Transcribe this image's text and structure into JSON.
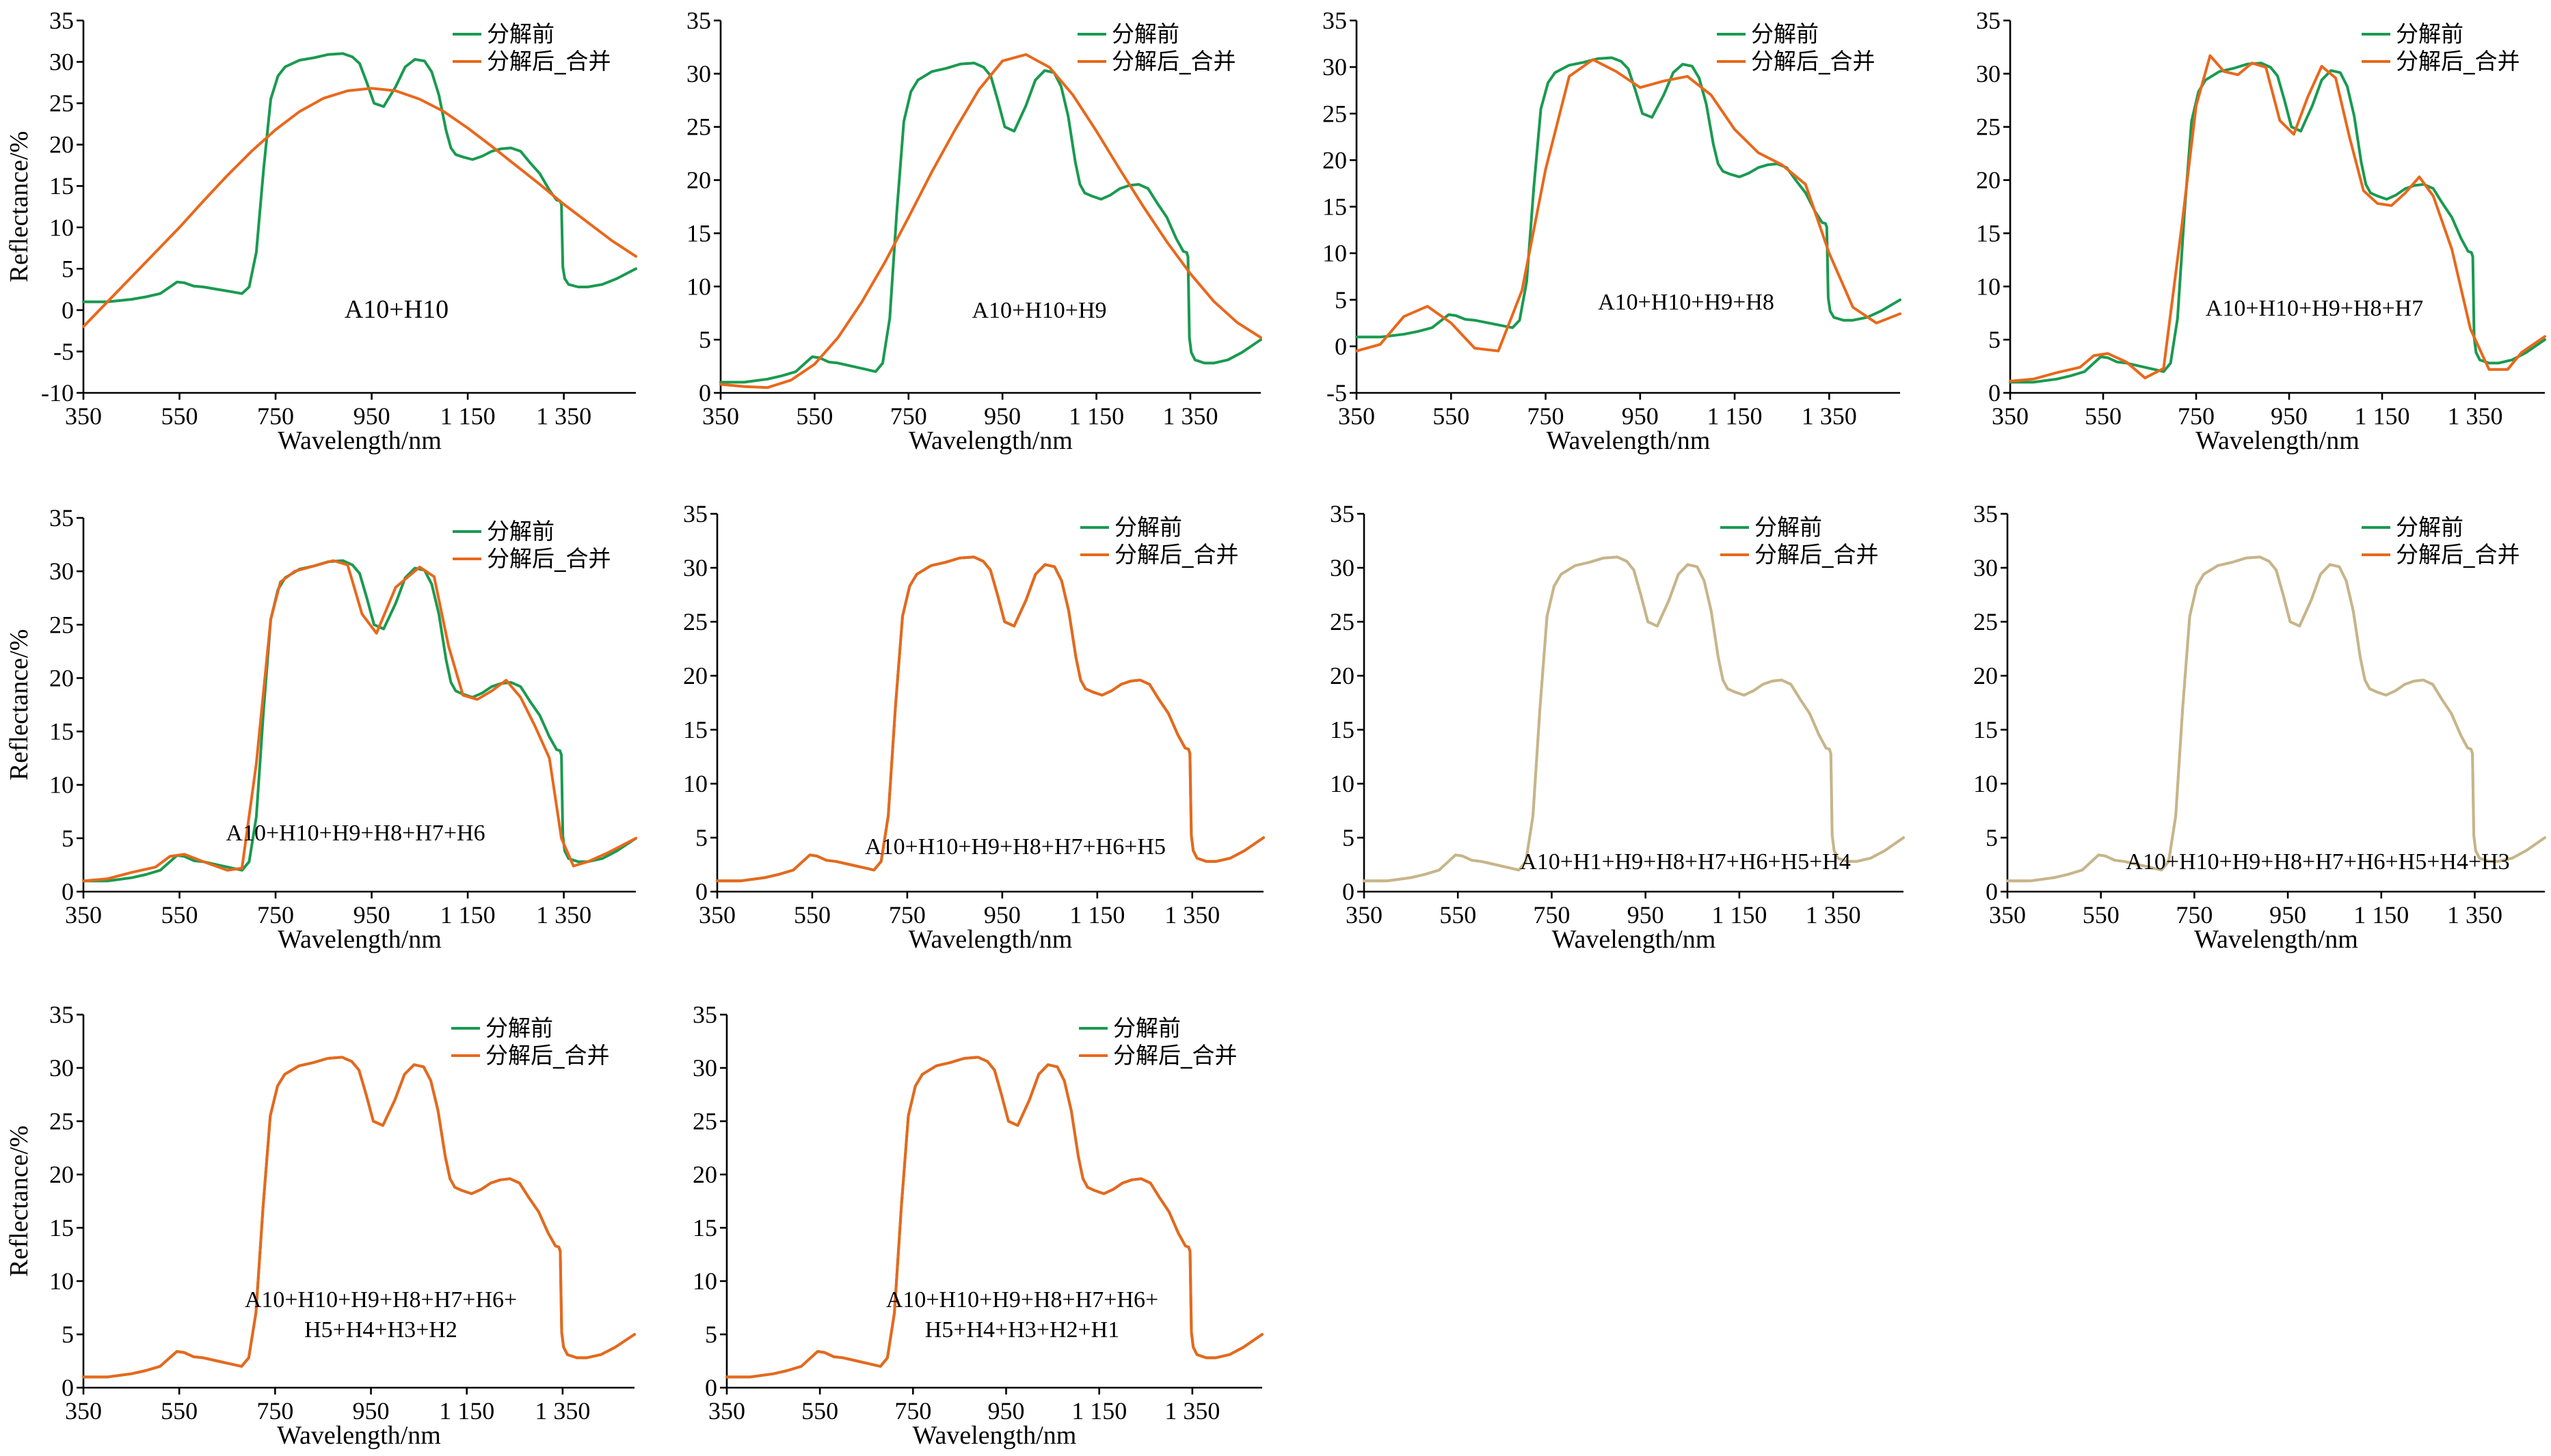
{
  "figure": {
    "colors": {
      "before": "#1a9a50",
      "after": "#e8681c",
      "merged": "#c7b58a"
    },
    "legend": [
      "分解前",
      "分解后_合并"
    ],
    "xlabel": "Wavelength/nm",
    "ylabel": "Reflectance/%"
  },
  "chart_data": [
    {
      "type": "line",
      "caption": [
        "A10+H10"
      ],
      "xlim": [
        350,
        1500
      ],
      "ylim": [
        -10,
        35
      ],
      "xticks": [
        350,
        550,
        750,
        950,
        1150,
        1350
      ],
      "xtick_labels": [
        "350",
        "550",
        "750",
        "950",
        "1 150",
        "1 350"
      ],
      "yticks": [
        -10,
        -5,
        0,
        5,
        10,
        15,
        20,
        25,
        30,
        35
      ],
      "ytick_labels": [
        "-10",
        "-5",
        "0",
        "5",
        "10",
        "15",
        "20",
        "25",
        "30",
        "35"
      ],
      "xlabel": "Wavelength/nm",
      "ylabel": "Reflectance/%",
      "legend": [
        "分解前",
        "分解后_合并"
      ],
      "series": [
        {
          "name": "分解前",
          "ref": "base"
        },
        {
          "name": "分解后_合并",
          "x": [
            350,
            400,
            450,
            500,
            550,
            600,
            650,
            700,
            750,
            800,
            850,
            900,
            950,
            1000,
            1050,
            1100,
            1150,
            1200,
            1250,
            1300,
            1350,
            1400,
            1450,
            1500
          ],
          "y": [
            -2,
            1,
            4,
            7,
            10,
            13.2,
            16.3,
            19.2,
            21.8,
            24,
            25.6,
            26.5,
            26.8,
            26.5,
            25.5,
            24,
            22,
            19.8,
            17.5,
            15.2,
            12.8,
            10.6,
            8.4,
            6.5
          ]
        }
      ]
    },
    {
      "type": "line",
      "caption": [
        "A10+H10+H9"
      ],
      "xlim": [
        350,
        1500
      ],
      "ylim": [
        0,
        35
      ],
      "xticks": [
        350,
        550,
        750,
        950,
        1150,
        1350
      ],
      "xtick_labels": [
        "350",
        "550",
        "750",
        "950",
        "1 150",
        "1 350"
      ],
      "yticks": [
        0,
        5,
        10,
        15,
        20,
        25,
        30,
        35
      ],
      "ytick_labels": [
        "0",
        "5",
        "10",
        "15",
        "20",
        "25",
        "30",
        "35"
      ],
      "xlabel": "Wavelength/nm",
      "ylabel": "",
      "legend": [
        "分解前",
        "分解后_合并"
      ],
      "series": [
        {
          "name": "分解前",
          "ref": "base"
        },
        {
          "name": "分解后_合并",
          "x": [
            350,
            400,
            450,
            500,
            550,
            600,
            650,
            700,
            750,
            800,
            850,
            900,
            950,
            1000,
            1050,
            1100,
            1150,
            1200,
            1250,
            1300,
            1350,
            1400,
            1450,
            1500
          ],
          "y": [
            0.8,
            0.6,
            0.5,
            1.2,
            2.7,
            5.2,
            8.5,
            12.3,
            16.5,
            20.8,
            24.8,
            28.5,
            31.2,
            31.8,
            30.6,
            28,
            24.6,
            21,
            17.5,
            14.2,
            11.2,
            8.6,
            6.6,
            5.2
          ]
        }
      ]
    },
    {
      "type": "line",
      "caption": [
        "A10+H10+H9+H8"
      ],
      "xlim": [
        350,
        1500
      ],
      "ylim": [
        -5,
        35
      ],
      "xticks": [
        350,
        550,
        750,
        950,
        1150,
        1350
      ],
      "xtick_labels": [
        "350",
        "550",
        "750",
        "950",
        "1 150",
        "1 350"
      ],
      "yticks": [
        -5,
        0,
        5,
        10,
        15,
        20,
        25,
        30,
        35
      ],
      "ytick_labels": [
        "-5",
        "0",
        "5",
        "10",
        "15",
        "20",
        "25",
        "30",
        "35"
      ],
      "xlabel": "Wavelength/nm",
      "ylabel": "",
      "legend": [
        "分解前",
        "分解后_合并"
      ],
      "series": [
        {
          "name": "分解前",
          "ref": "base"
        },
        {
          "name": "分解后_合并",
          "x": [
            350,
            400,
            450,
            500,
            550,
            600,
            650,
            700,
            750,
            800,
            850,
            900,
            950,
            1000,
            1050,
            1100,
            1150,
            1200,
            1250,
            1300,
            1350,
            1400,
            1450,
            1500
          ],
          "y": [
            -0.5,
            0.2,
            3.2,
            4.3,
            2.5,
            -0.2,
            -0.5,
            6,
            19,
            29,
            30.8,
            29.5,
            27.8,
            28.5,
            29,
            27,
            23.3,
            20.8,
            19.5,
            17.4,
            10,
            4.2,
            2.5,
            3.5
          ]
        }
      ]
    },
    {
      "type": "line",
      "caption": [
        "A10+H10+H9+H8+H7"
      ],
      "xlim": [
        350,
        1500
      ],
      "ylim": [
        0,
        35
      ],
      "xticks": [
        350,
        550,
        750,
        950,
        1150,
        1350
      ],
      "xtick_labels": [
        "350",
        "550",
        "750",
        "950",
        "1 150",
        "1 350"
      ],
      "yticks": [
        0,
        5,
        10,
        15,
        20,
        25,
        30,
        35
      ],
      "ytick_labels": [
        "0",
        "5",
        "10",
        "15",
        "20",
        "25",
        "30",
        "35"
      ],
      "xlabel": "Wavelength/nm",
      "ylabel": "",
      "legend": [
        "分解前",
        "分解后_合并"
      ],
      "series": [
        {
          "name": "分解前",
          "ref": "base"
        },
        {
          "name": "分解后_合并",
          "x": [
            350,
            400,
            450,
            500,
            530,
            560,
            600,
            640,
            680,
            720,
            750,
            780,
            810,
            840,
            870,
            900,
            930,
            960,
            990,
            1020,
            1050,
            1080,
            1110,
            1140,
            1170,
            1200,
            1230,
            1260,
            1300,
            1340,
            1380,
            1420,
            1450,
            1500
          ],
          "y": [
            1.1,
            1.3,
            1.9,
            2.4,
            3.5,
            3.7,
            2.9,
            1.4,
            2.3,
            16,
            27,
            31.7,
            30.2,
            29.9,
            31,
            30.6,
            25.6,
            24.3,
            27.8,
            30.7,
            29.6,
            24,
            19,
            17.8,
            17.6,
            18.8,
            20.3,
            18.5,
            13.5,
            6,
            2.2,
            2.2,
            3.8,
            5.3
          ]
        }
      ]
    },
    {
      "type": "line",
      "caption": [
        "A10+H10+H9+H8+H7+H6"
      ],
      "xlim": [
        350,
        1500
      ],
      "ylim": [
        0,
        35
      ],
      "xticks": [
        350,
        550,
        750,
        950,
        1150,
        1350
      ],
      "xtick_labels": [
        "350",
        "550",
        "750",
        "950",
        "1 150",
        "1 350"
      ],
      "yticks": [
        0,
        5,
        10,
        15,
        20,
        25,
        30,
        35
      ],
      "ytick_labels": [
        "0",
        "5",
        "10",
        "15",
        "20",
        "25",
        "30",
        "35"
      ],
      "xlabel": "Wavelength/nm",
      "ylabel": "Reflectance/%",
      "legend": [
        "分解前",
        "分解后_合并"
      ],
      "series": [
        {
          "name": "分解前",
          "ref": "base"
        },
        {
          "name": "分解后_合并",
          "x": [
            350,
            400,
            450,
            500,
            530,
            560,
            600,
            650,
            680,
            710,
            740,
            760,
            790,
            830,
            870,
            900,
            930,
            960,
            1000,
            1050,
            1080,
            1110,
            1140,
            1170,
            1200,
            1230,
            1260,
            1290,
            1320,
            1345,
            1370,
            1400,
            1440,
            1500
          ],
          "y": [
            1,
            1.2,
            1.8,
            2.3,
            3.3,
            3.5,
            2.8,
            2,
            2.2,
            12,
            25.5,
            29,
            30,
            30.5,
            31,
            30.6,
            26,
            24.2,
            28.5,
            30.4,
            29.5,
            23,
            18.4,
            18,
            18.8,
            19.8,
            18.2,
            15.5,
            12.5,
            5,
            2.4,
            2.8,
            3.6,
            5
          ]
        }
      ]
    },
    {
      "type": "line",
      "caption": [
        "A10+H10+H9+H8+H7+H6+H5"
      ],
      "xlim": [
        350,
        1500
      ],
      "ylim": [
        0,
        35
      ],
      "xticks": [
        350,
        550,
        750,
        950,
        1150,
        1350
      ],
      "xtick_labels": [
        "350",
        "550",
        "750",
        "950",
        "1 150",
        "1 350"
      ],
      "yticks": [
        0,
        5,
        10,
        15,
        20,
        25,
        30,
        35
      ],
      "ytick_labels": [
        "0",
        "5",
        "10",
        "15",
        "20",
        "25",
        "30",
        "35"
      ],
      "xlabel": "Wavelength/nm",
      "ylabel": "",
      "legend": [
        "分解前",
        "分解后_合并"
      ],
      "series": [
        {
          "name": "分解前",
          "ref": "base"
        },
        {
          "name": "分解后_合并",
          "ref": "base"
        }
      ]
    },
    {
      "type": "line",
      "caption": [
        "A10+H1+H9+H8+H7+H6+H5+H4"
      ],
      "xlim": [
        350,
        1500
      ],
      "ylim": [
        0,
        35
      ],
      "xticks": [
        350,
        550,
        750,
        950,
        1150,
        1350
      ],
      "xtick_labels": [
        "350",
        "550",
        "750",
        "950",
        "1 150",
        "1 350"
      ],
      "yticks": [
        0,
        5,
        10,
        15,
        20,
        25,
        30,
        35
      ],
      "ytick_labels": [
        "0",
        "5",
        "10",
        "15",
        "20",
        "25",
        "30",
        "35"
      ],
      "xlabel": "Wavelength/nm",
      "ylabel": "",
      "legend": [
        "分解前",
        "分解后_合并"
      ],
      "series": [
        {
          "name": "分解前",
          "ref": "base"
        },
        {
          "name": "分解后_合并",
          "ref": "base"
        }
      ]
    },
    {
      "type": "line",
      "caption": [
        "A10+H10+H9+H8+H7+H6+H5+H4+H3"
      ],
      "xlim": [
        350,
        1500
      ],
      "ylim": [
        0,
        35
      ],
      "xticks": [
        350,
        550,
        750,
        950,
        1150,
        1350
      ],
      "xtick_labels": [
        "350",
        "550",
        "750",
        "950",
        "1 150",
        "1 350"
      ],
      "yticks": [
        0,
        5,
        10,
        15,
        20,
        25,
        30,
        35
      ],
      "ytick_labels": [
        "0",
        "5",
        "10",
        "15",
        "20",
        "25",
        "30",
        "35"
      ],
      "xlabel": "Wavelength/nm",
      "ylabel": "",
      "legend": [
        "分解前",
        "分解后_合并"
      ],
      "series": [
        {
          "name": "分解前",
          "ref": "base"
        },
        {
          "name": "分解后_合并",
          "ref": "base"
        }
      ]
    },
    {
      "type": "line",
      "caption": [
        "A10+H10+H9+H8+H7+H6+",
        "H5+H4+H3+H2"
      ],
      "xlim": [
        350,
        1500
      ],
      "ylim": [
        0,
        35
      ],
      "xticks": [
        350,
        550,
        750,
        950,
        1150,
        1350
      ],
      "xtick_labels": [
        "350",
        "550",
        "750",
        "950",
        "1 150",
        "1 350"
      ],
      "yticks": [
        0,
        5,
        10,
        15,
        20,
        25,
        30,
        35
      ],
      "ytick_labels": [
        "0",
        "5",
        "10",
        "15",
        "20",
        "25",
        "30",
        "35"
      ],
      "xlabel": "Wavelength/nm",
      "ylabel": "Reflectance/%",
      "legend": [
        "分解前",
        "分解后_合并"
      ],
      "series": [
        {
          "name": "分解前",
          "ref": "base"
        },
        {
          "name": "分解后_合并",
          "ref": "base"
        }
      ]
    },
    {
      "type": "line",
      "caption": [
        "A10+H10+H9+H8+H7+H6+",
        "H5+H4+H3+H2+H1"
      ],
      "xlim": [
        350,
        1500
      ],
      "ylim": [
        0,
        35
      ],
      "xticks": [
        350,
        550,
        750,
        950,
        1150,
        1350
      ],
      "xtick_labels": [
        "350",
        "550",
        "750",
        "950",
        "1 150",
        "1 350"
      ],
      "yticks": [
        0,
        5,
        10,
        15,
        20,
        25,
        30,
        35
      ],
      "ytick_labels": [
        "0",
        "5",
        "10",
        "15",
        "20",
        "25",
        "30",
        "35"
      ],
      "xlabel": "Wavelength/nm",
      "ylabel": "",
      "legend": [
        "分解前",
        "分解后_合并"
      ],
      "series": [
        {
          "name": "分解前",
          "ref": "base"
        },
        {
          "name": "分解后_合并",
          "ref": "base"
        }
      ]
    }
  ],
  "base_spectrum": {
    "x": [
      350,
      400,
      450,
      480,
      510,
      530,
      545,
      560,
      580,
      600,
      630,
      660,
      680,
      695,
      710,
      725,
      740,
      755,
      770,
      800,
      830,
      860,
      890,
      910,
      925,
      940,
      955,
      975,
      1000,
      1020,
      1040,
      1060,
      1075,
      1090,
      1105,
      1115,
      1125,
      1140,
      1160,
      1180,
      1200,
      1220,
      1240,
      1260,
      1280,
      1300,
      1320,
      1335,
      1342,
      1345,
      1348,
      1352,
      1360,
      1380,
      1400,
      1430,
      1460,
      1500
    ],
    "y": [
      1,
      1,
      1.3,
      1.6,
      2,
      2.8,
      3.4,
      3.3,
      2.9,
      2.8,
      2.5,
      2.2,
      2,
      2.8,
      7,
      17,
      25.5,
      28.3,
      29.4,
      30.2,
      30.5,
      30.9,
      31,
      30.6,
      29.8,
      27.5,
      25,
      24.6,
      27,
      29.4,
      30.3,
      30.1,
      28.8,
      26,
      21.7,
      19.6,
      18.8,
      18.5,
      18.2,
      18.6,
      19.2,
      19.5,
      19.6,
      19.2,
      17.8,
      16.5,
      14.5,
      13.3,
      13.2,
      12.8,
      5.2,
      3.8,
      3.1,
      2.8,
      2.8,
      3.1,
      3.8,
      5
    ]
  }
}
